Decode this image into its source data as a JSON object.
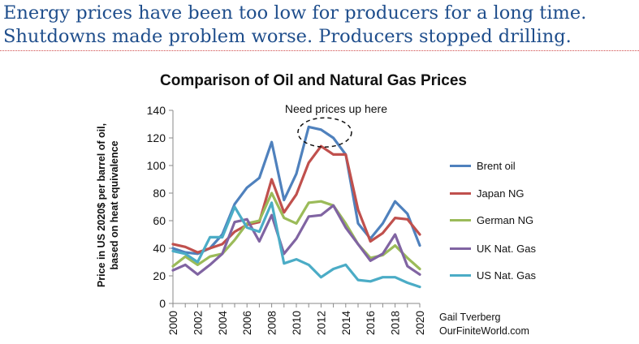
{
  "headline": {
    "line1": "Energy prices have been too low for producers for a long time.",
    "line2": "Shutdowns made problem worse. Producers stopped drilling."
  },
  "credit": {
    "line1": "Gail Tverberg",
    "line2": "OurFiniteWorld.com"
  },
  "chart_data": {
    "type": "line",
    "title": "Comparison of Oil and Natural Gas Prices",
    "ylabel_line1": "Price in US 2020$ per barrel of oil,",
    "ylabel_line2": "based on heat equivalence",
    "xlabel": "",
    "ylim": [
      0,
      140
    ],
    "yticks": [
      0,
      20,
      40,
      60,
      80,
      100,
      120,
      140
    ],
    "xlim": [
      2000,
      2020
    ],
    "xticks": [
      2000,
      2002,
      2004,
      2006,
      2008,
      2010,
      2012,
      2014,
      2016,
      2018,
      2020
    ],
    "grid": false,
    "legend_position": "right",
    "annotation": {
      "text": "Need prices up here",
      "shape": "dashed-ellipse",
      "center_x": 2012.3,
      "center_y": 124
    },
    "x": [
      2000,
      2001,
      2002,
      2003,
      2004,
      2005,
      2006,
      2007,
      2008,
      2009,
      2010,
      2011,
      2012,
      2013,
      2014,
      2015,
      2016,
      2017,
      2018,
      2019,
      2020
    ],
    "series": [
      {
        "name": "Brent oil",
        "color": "#4f81bd",
        "values": [
          40,
          37,
          36,
          40,
          50,
          72,
          84,
          91,
          117,
          75,
          94,
          128,
          126,
          120,
          108,
          58,
          47,
          58,
          74,
          65,
          42
        ]
      },
      {
        "name": "Japan NG",
        "color": "#c0504d",
        "values": [
          43,
          41,
          37,
          40,
          43,
          52,
          57,
          59,
          90,
          66,
          79,
          102,
          114,
          108,
          108,
          68,
          45,
          51,
          62,
          61,
          50
        ]
      },
      {
        "name": "German NG",
        "color": "#9bbb59",
        "values": [
          27,
          34,
          28,
          34,
          36,
          46,
          58,
          60,
          80,
          62,
          58,
          73,
          74,
          71,
          58,
          43,
          33,
          35,
          42,
          33,
          25
        ]
      },
      {
        "name": "UK Nat. Gas",
        "color": "#8064a2",
        "values": [
          24,
          28,
          21,
          28,
          36,
          59,
          61,
          45,
          64,
          36,
          47,
          63,
          64,
          71,
          55,
          43,
          31,
          36,
          50,
          27,
          21
        ]
      },
      {
        "name": "US Nat. Gas",
        "color": "#4bacc6",
        "values": [
          38,
          36,
          30,
          48,
          48,
          70,
          55,
          52,
          73,
          29,
          32,
          28,
          19,
          25,
          28,
          17,
          16,
          19,
          19,
          15,
          12
        ]
      }
    ]
  }
}
